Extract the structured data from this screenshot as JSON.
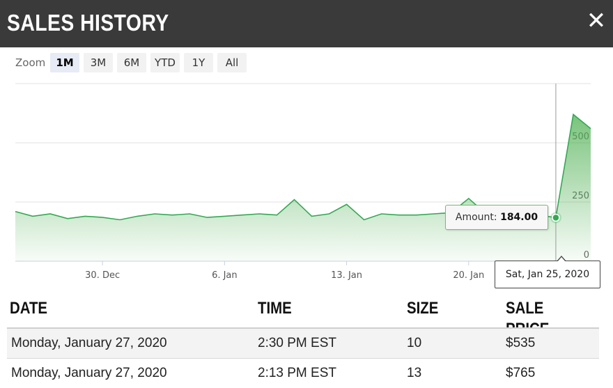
{
  "header": {
    "title": "SALES HISTORY",
    "close_icon": "close-icon"
  },
  "zoom": {
    "label": "Zoom",
    "options": [
      "1M",
      "3M",
      "6M",
      "YTD",
      "1Y",
      "All"
    ],
    "selected": "1M"
  },
  "colors": {
    "line": "#34a853",
    "fill": "#4caf50",
    "header_bg": "#3a3a3a"
  },
  "chart_data": {
    "type": "area",
    "y_ticks": [
      "0",
      "250",
      "500"
    ],
    "ylim": [
      0,
      750
    ],
    "grid": true,
    "x_tick_labels": [
      "30. Dec",
      "6. Jan",
      "13. Jan",
      "20. Jan"
    ],
    "x_tick_dates": [
      "2019-12-30",
      "2020-01-06",
      "2020-01-13",
      "2020-01-20"
    ],
    "x_range": [
      "2019-12-25",
      "2020-01-27"
    ],
    "series": [
      {
        "points": [
          [
            "2019-12-25",
            210
          ],
          [
            "2019-12-26",
            190
          ],
          [
            "2019-12-27",
            200
          ],
          [
            "2019-12-28",
            180
          ],
          [
            "2019-12-29",
            190
          ],
          [
            "2019-12-30",
            185
          ],
          [
            "2019-12-31",
            175
          ],
          [
            "2020-01-01",
            190
          ],
          [
            "2020-01-02",
            200
          ],
          [
            "2020-01-03",
            195
          ],
          [
            "2020-01-04",
            200
          ],
          [
            "2020-01-05",
            185
          ],
          [
            "2020-01-06",
            190
          ],
          [
            "2020-01-07",
            195
          ],
          [
            "2020-01-08",
            200
          ],
          [
            "2020-01-09",
            195
          ],
          [
            "2020-01-10",
            260
          ],
          [
            "2020-01-11",
            190
          ],
          [
            "2020-01-12",
            200
          ],
          [
            "2020-01-13",
            240
          ],
          [
            "2020-01-14",
            175
          ],
          [
            "2020-01-15",
            200
          ],
          [
            "2020-01-16",
            195
          ],
          [
            "2020-01-17",
            195
          ],
          [
            "2020-01-18",
            200
          ],
          [
            "2020-01-19",
            205
          ],
          [
            "2020-01-20",
            265
          ],
          [
            "2020-01-21",
            200
          ],
          [
            "2020-01-22",
            210
          ],
          [
            "2020-01-23",
            200
          ],
          [
            "2020-01-24",
            195
          ],
          [
            "2020-01-25",
            184
          ],
          [
            "2020-01-26",
            620
          ],
          [
            "2020-01-27",
            560
          ]
        ]
      }
    ],
    "tooltip": {
      "label": "Amount:",
      "value": "184.00",
      "date": "Sat, Jan 25, 2020"
    }
  },
  "table": {
    "headers": [
      "DATE",
      "TIME",
      "SIZE",
      "SALE PRICE"
    ],
    "rows": [
      [
        "Monday, January 27, 2020",
        "2:30 PM EST",
        "10",
        "$535"
      ],
      [
        "Monday, January 27, 2020",
        "2:13 PM EST",
        "13",
        "$765"
      ]
    ]
  }
}
